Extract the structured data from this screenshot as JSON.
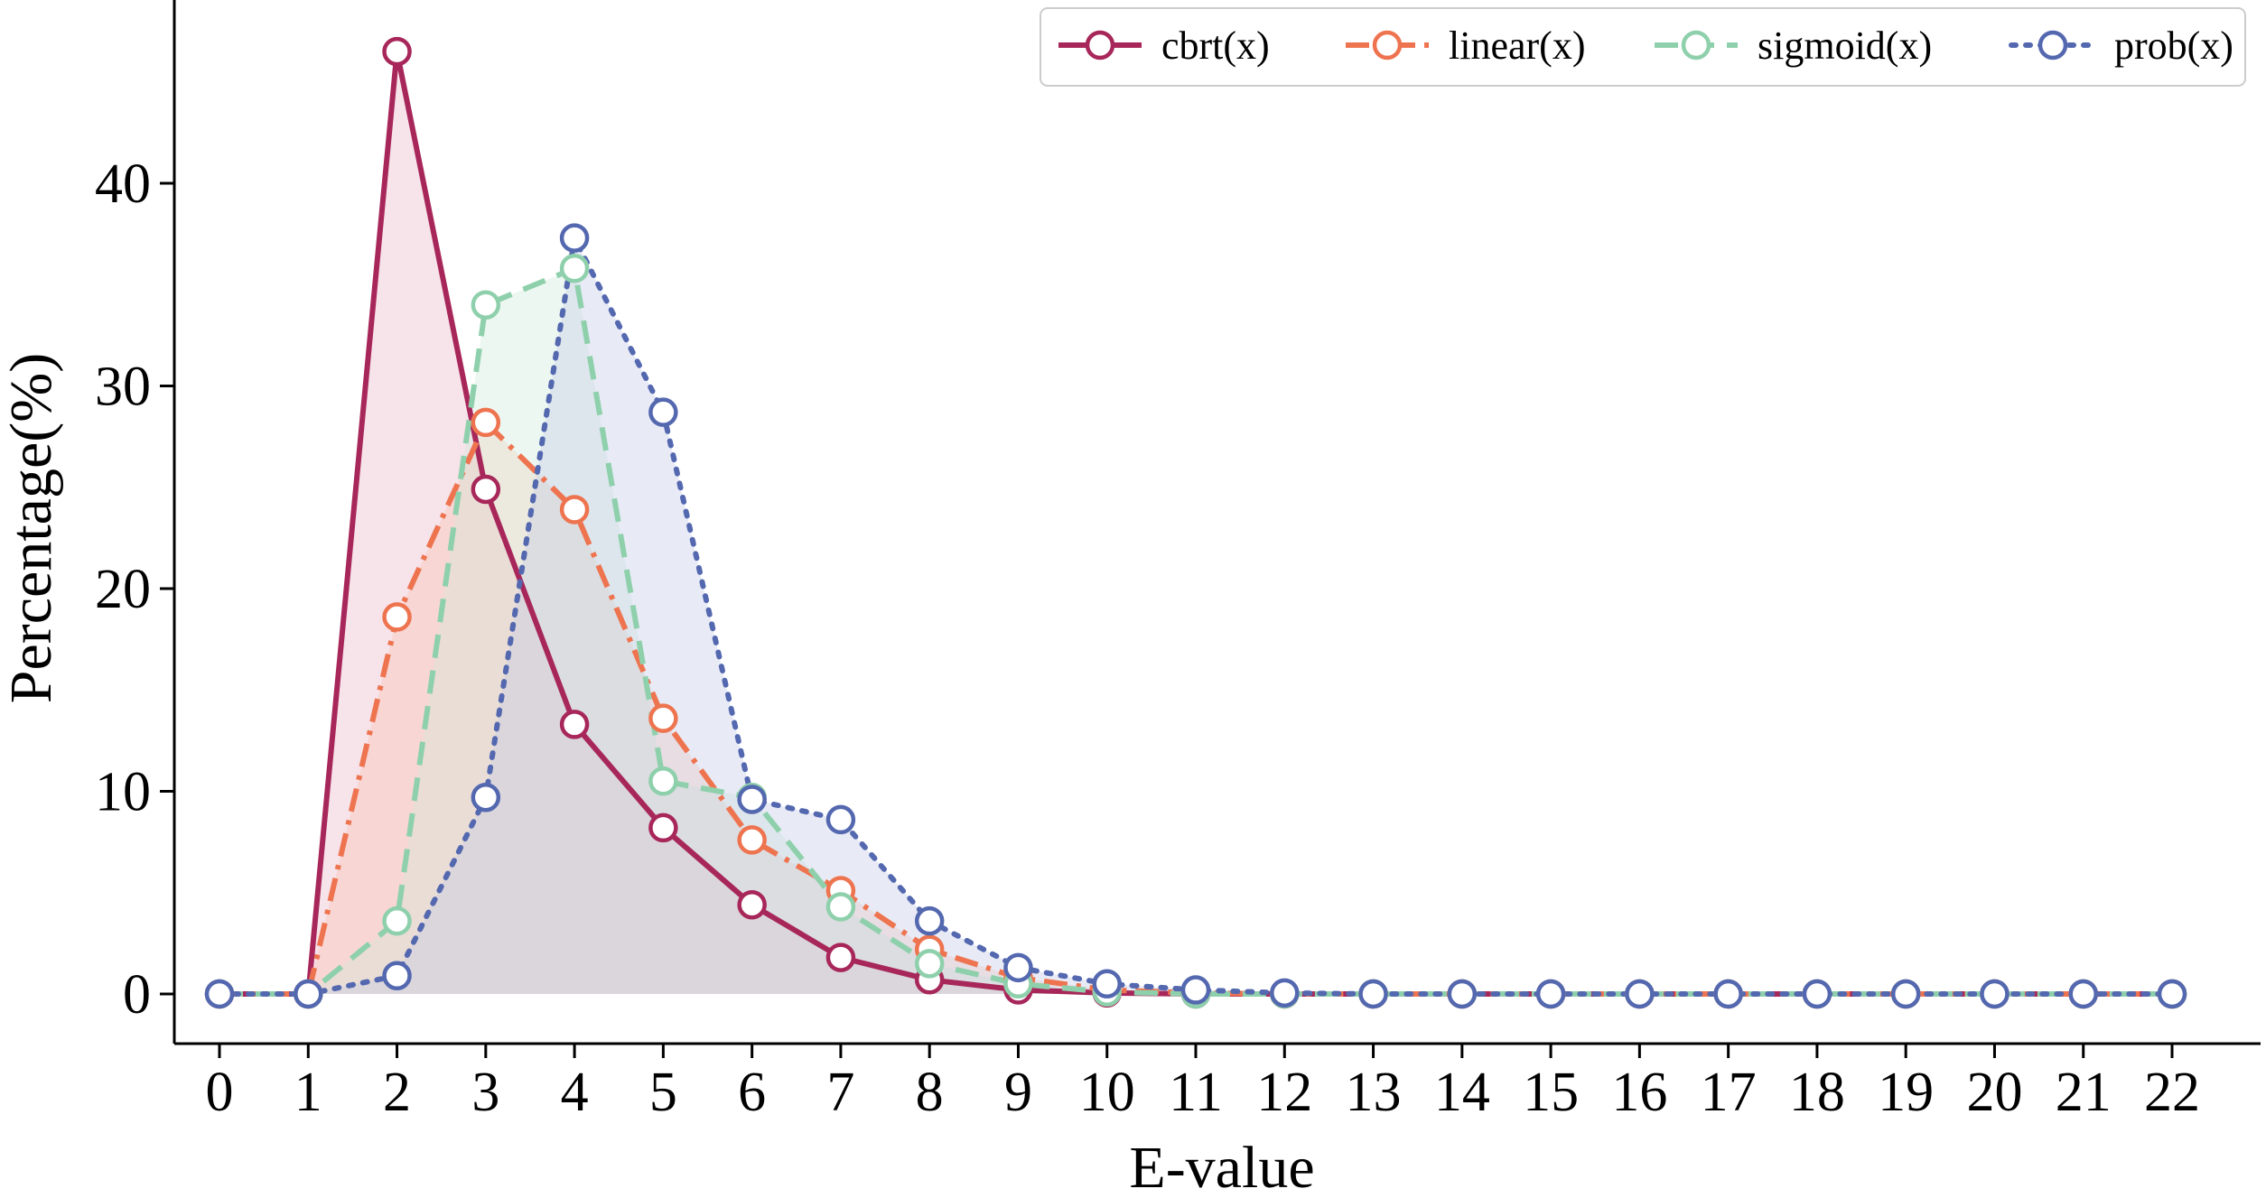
{
  "chart_data": {
    "type": "line",
    "title": "",
    "xlabel": "E-value",
    "ylabel": "Percentage(%)",
    "xlim": [
      -0.5,
      22.5
    ],
    "ylim": [
      -2.5,
      48.5
    ],
    "x": [
      0,
      1,
      2,
      3,
      4,
      5,
      6,
      7,
      8,
      9,
      10,
      11,
      12,
      13,
      14,
      15,
      16,
      17,
      18,
      19,
      20,
      21,
      22
    ],
    "xticks": [
      0,
      1,
      2,
      3,
      4,
      5,
      6,
      7,
      8,
      9,
      10,
      11,
      12,
      13,
      14,
      15,
      16,
      17,
      18,
      19,
      20,
      21,
      22
    ],
    "yticks": [
      0,
      10,
      20,
      30,
      40
    ],
    "grid": false,
    "legend_position": "top-right",
    "series": [
      {
        "name": "cbrt(x)",
        "color": "#a8275a",
        "fill": "#e9b6c9",
        "style": "solid",
        "values": [
          0,
          0,
          46.5,
          24.9,
          13.3,
          8.2,
          4.4,
          1.8,
          0.7,
          0.2,
          0.05,
          0,
          0,
          0,
          0,
          0,
          0,
          0,
          0,
          0,
          0,
          0,
          0
        ]
      },
      {
        "name": "linear(x)",
        "color": "#ee7450",
        "fill": "#f9c2b0",
        "style": "dashdot",
        "values": [
          0,
          0,
          18.6,
          28.2,
          23.9,
          13.6,
          7.6,
          5.1,
          2.2,
          0.8,
          0.2,
          0.05,
          0,
          0,
          0,
          0,
          0,
          0,
          0,
          0,
          0,
          0,
          0
        ]
      },
      {
        "name": "sigmoid(x)",
        "color": "#8fd0ac",
        "fill": "#cfebdb",
        "style": "dashed",
        "values": [
          0,
          0,
          3.6,
          34.0,
          35.8,
          10.5,
          9.7,
          4.3,
          1.5,
          0.5,
          0.1,
          0,
          0,
          0,
          0,
          0,
          0,
          0,
          0,
          0,
          0,
          0,
          0
        ]
      },
      {
        "name": "prob(x)",
        "color": "#5468b0",
        "fill": "#c3cbe8",
        "style": "dotted",
        "values": [
          0,
          0,
          0.9,
          9.7,
          37.3,
          28.7,
          9.6,
          8.6,
          3.6,
          1.3,
          0.5,
          0.2,
          0.05,
          0,
          0,
          0,
          0,
          0,
          0,
          0,
          0,
          0,
          0
        ]
      }
    ]
  }
}
